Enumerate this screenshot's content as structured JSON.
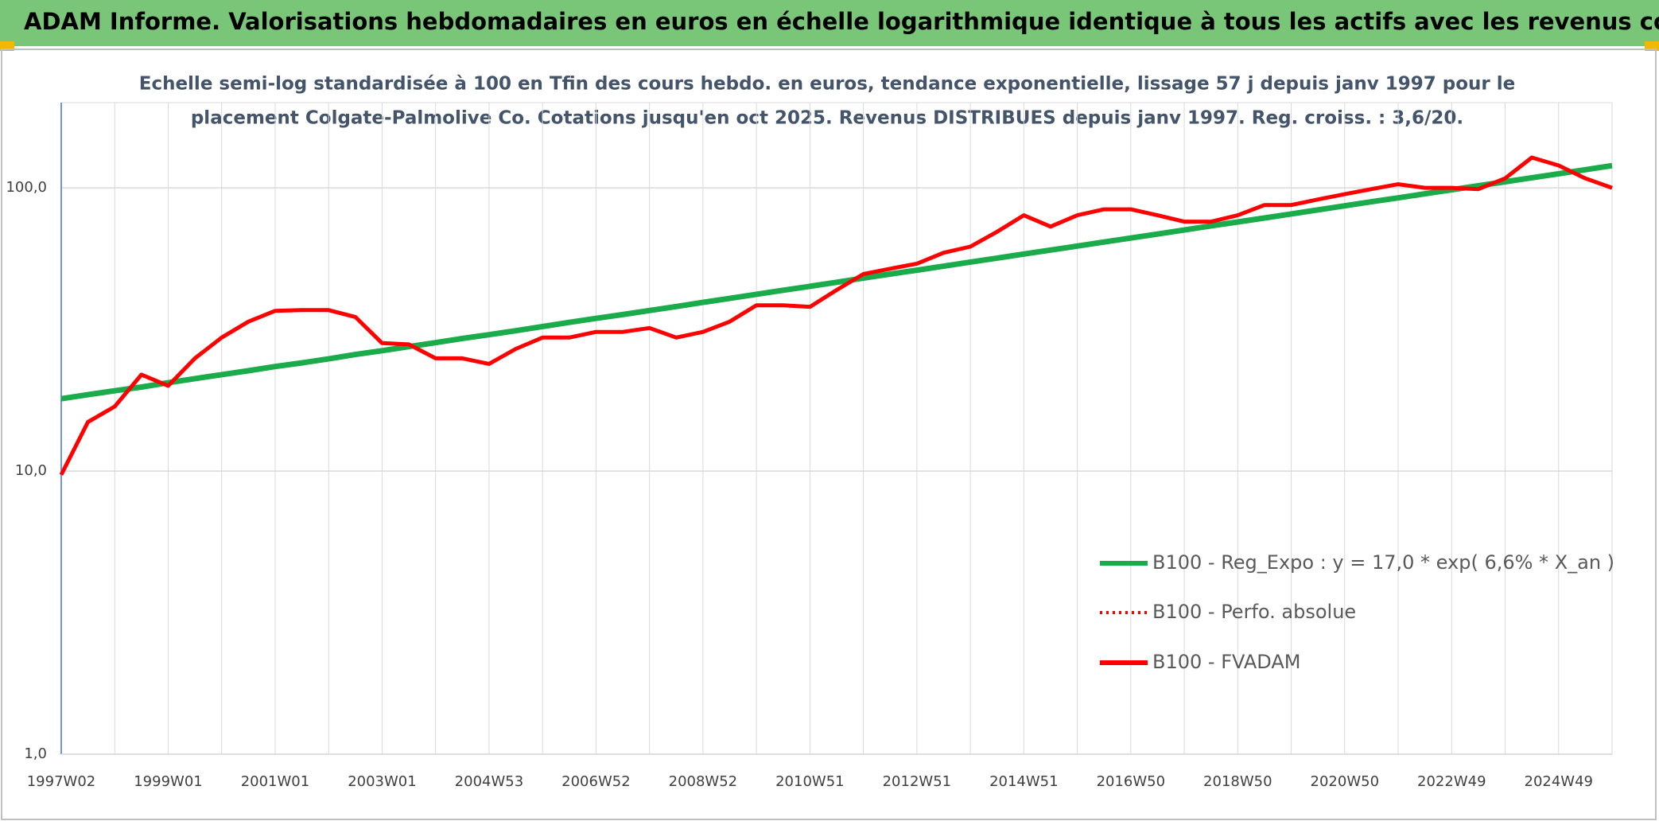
{
  "chart_data": {
    "type": "line",
    "title": "ADAM Informe. Valorisations hebdomadaires en euros en échelle logarithmique identique à tous les actifs avec les revenus connus distribués",
    "subtitle": [
      "Echelle semi-log standardisée à 100 en Tfin des cours hebdo. en euros, tendance exponentielle, lissage 57 j depuis janv 1997 pour le",
      "placement Colgate-Palmolive Co. Cotations jusqu'en oct 2025. Revenus DISTRIBUES depuis janv 1997. Reg. croiss. : 3,6/20."
    ],
    "log_scale": true,
    "grid": true,
    "ylim": [
      1,
      200
    ],
    "yticks": [
      {
        "value": 1,
        "label": "1,0"
      },
      {
        "value": 10,
        "label": "10,0"
      },
      {
        "value": 100,
        "label": "100,0"
      }
    ],
    "categories": [
      "1997W02",
      null,
      null,
      null,
      "1999W01",
      null,
      null,
      null,
      "2001W01",
      null,
      null,
      null,
      "2003W01",
      null,
      null,
      null,
      "2004W53",
      null,
      null,
      null,
      "2006W52",
      null,
      null,
      null,
      "2008W52",
      null,
      null,
      null,
      "2010W51",
      null,
      null,
      null,
      "2012W51",
      null,
      null,
      null,
      "2014W51",
      null,
      null,
      null,
      "2016W50",
      null,
      null,
      null,
      "2018W50",
      null,
      null,
      null,
      "2020W50",
      null,
      null,
      null,
      "2022W49",
      null,
      null,
      null,
      "2024W49",
      null,
      null
    ],
    "series": [
      {
        "name": "B100 - Reg_Expo : y = 17,0 * exp( 6,6% *  X_an )",
        "color": "#1aab4b",
        "dash": "solid",
        "values": [
          18.0,
          18.6,
          19.2,
          19.8,
          20.5,
          21.2,
          21.9,
          22.6,
          23.4,
          24.1,
          24.9,
          25.8,
          26.6,
          27.5,
          28.4,
          29.4,
          30.3,
          31.3,
          32.4,
          33.5,
          34.6,
          35.7,
          36.9,
          38.1,
          39.4,
          40.7,
          42.1,
          43.5,
          44.9,
          46.4,
          48.0,
          49.6,
          51.2,
          52.9,
          54.7,
          56.5,
          58.4,
          60.3,
          62.3,
          64.4,
          66.5,
          68.7,
          71.0,
          73.4,
          75.8,
          78.3,
          80.9,
          83.6,
          86.4,
          89.3,
          92.2,
          95.3,
          98.5,
          101.7,
          105.1,
          108.6,
          112.2,
          115.9,
          119.8
        ]
      },
      {
        "name": "B100 - Perfo. absolue",
        "color": "#ff0000",
        "dash": "dotted",
        "values": [
          9.7,
          14.9,
          16.9,
          21.9,
          20,
          25,
          29.6,
          33.7,
          36.8,
          37,
          37,
          35,
          28.3,
          28,
          25,
          25,
          23.9,
          27,
          29.6,
          29.6,
          31,
          31,
          32,
          29.6,
          31,
          33.7,
          38.5,
          38.5,
          38,
          43.6,
          49.6,
          51.8,
          54,
          59,
          62,
          70,
          80,
          73,
          80,
          84,
          84,
          80,
          76,
          76,
          80,
          87,
          87,
          91,
          95,
          99,
          103,
          100,
          100,
          99,
          108,
          128,
          120,
          108,
          100
        ]
      },
      {
        "name": "B100 - FVADAM",
        "color": "#ff0000",
        "dash": "solid",
        "values": [
          9.7,
          14.9,
          16.9,
          21.9,
          20,
          25,
          29.6,
          33.7,
          36.8,
          37,
          37,
          35,
          28.3,
          28,
          25,
          25,
          23.9,
          27,
          29.6,
          29.6,
          31,
          31,
          32,
          29.6,
          31,
          33.7,
          38.5,
          38.5,
          38,
          43.6,
          49.6,
          51.8,
          54,
          59,
          62,
          70,
          80,
          73,
          80,
          84,
          84,
          80,
          76,
          76,
          80,
          87,
          87,
          91,
          95,
          99,
          103,
          100,
          100,
          99,
          108,
          128,
          120,
          108,
          100
        ]
      }
    ]
  }
}
